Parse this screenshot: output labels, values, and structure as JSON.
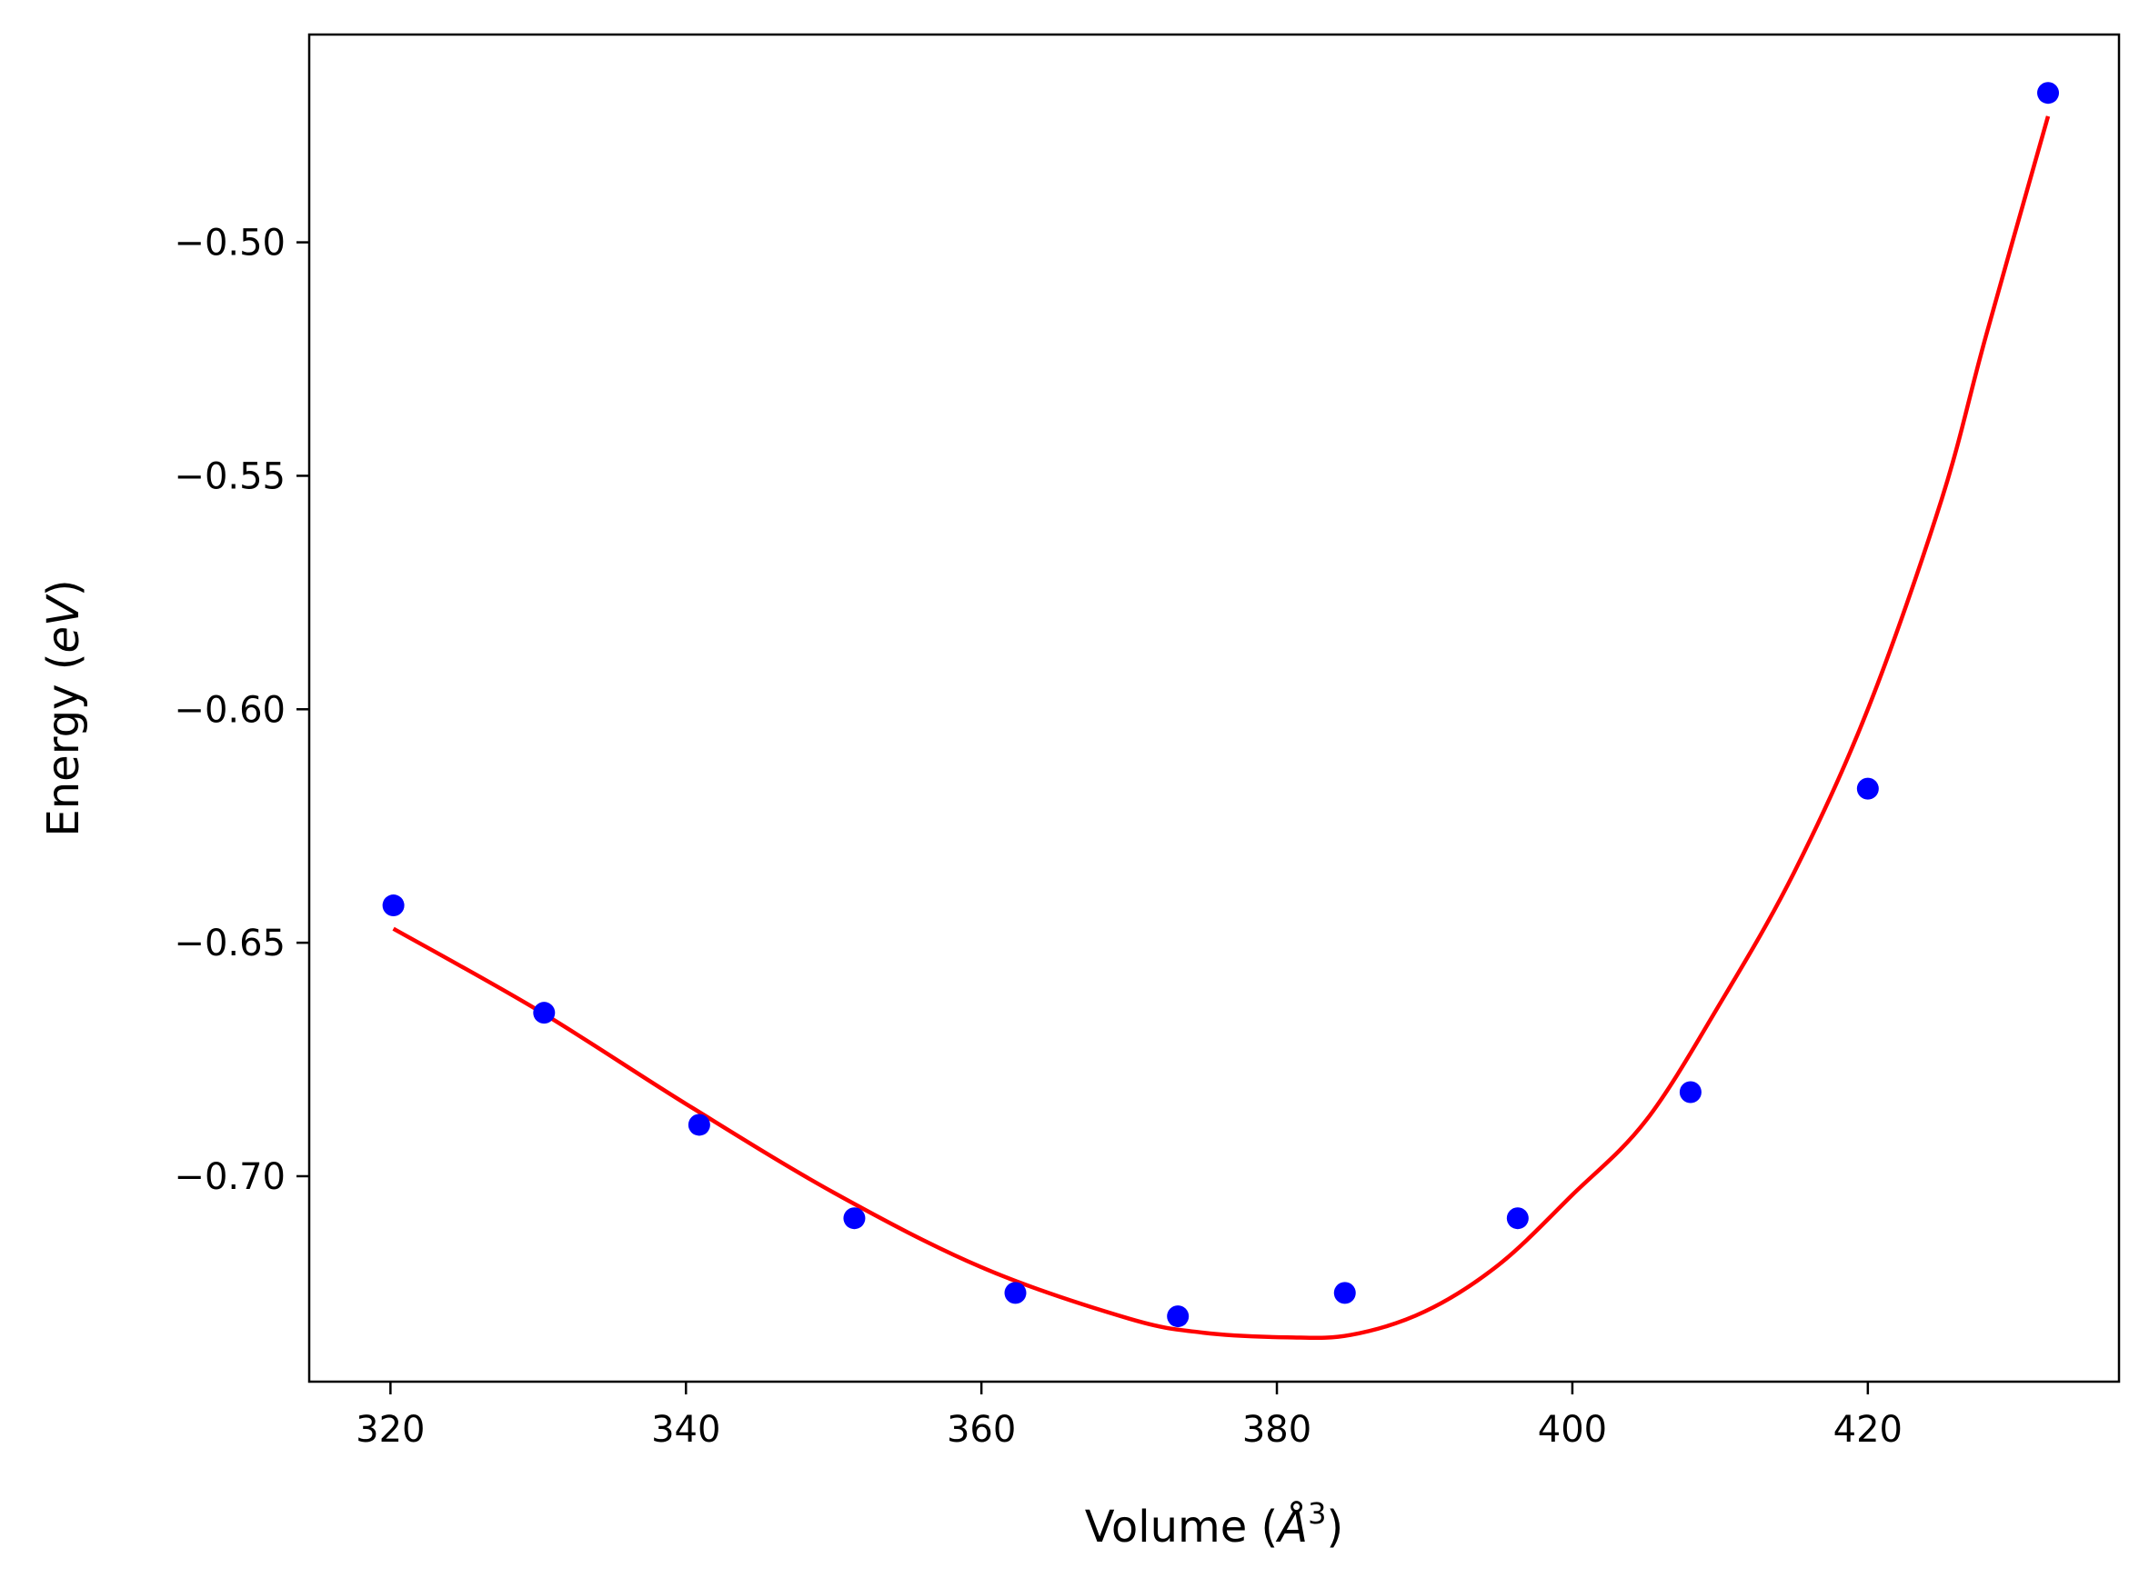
{
  "chart_data": {
    "type": "scatter",
    "xlabel": {
      "prefix": "Volume (",
      "unit_symbol": "Å",
      "exponent": "3",
      "suffix": ")"
    },
    "ylabel": {
      "prefix": "Energy (",
      "unit": "eV",
      "suffix": ")"
    },
    "xlim": [
      314.5,
      437.0
    ],
    "ylim": [
      -0.744,
      -0.4555
    ],
    "xticks": [
      320,
      340,
      360,
      380,
      400,
      420
    ],
    "xtick_labels": [
      "320",
      "340",
      "360",
      "380",
      "400",
      "420"
    ],
    "yticks": [
      -0.5,
      -0.55,
      -0.6,
      -0.65,
      -0.7
    ],
    "ytick_labels": [
      "−0.50",
      "−0.55",
      "−0.60",
      "−0.65",
      "−0.70"
    ],
    "grid": false,
    "legend": "none",
    "series": [
      {
        "kind": "points",
        "color": "#0000ff",
        "x": [
          320.2,
          330.4,
          340.9,
          351.4,
          362.3,
          373.3,
          384.6,
          396.3,
          408.0,
          420.0,
          432.2
        ],
        "y": [
          -0.642,
          -0.665,
          -0.689,
          -0.709,
          -0.725,
          -0.73,
          -0.725,
          -0.709,
          -0.682,
          -0.617,
          -0.468
        ]
      },
      {
        "kind": "fit-curve",
        "color": "#ff0000",
        "x": [
          320.2,
          330,
          340,
          350,
          360,
          370,
          375,
          380.7,
          385,
          390,
          395,
          400,
          405,
          410,
          415,
          420,
          425,
          428,
          432.2
        ],
        "y": [
          -0.647,
          -0.6645,
          -0.6845,
          -0.7035,
          -0.7195,
          -0.7305,
          -0.7335,
          -0.7345,
          -0.734,
          -0.729,
          -0.719,
          -0.704,
          -0.688,
          -0.663,
          -0.635,
          -0.6,
          -0.555,
          -0.52,
          -0.473
        ]
      }
    ]
  }
}
